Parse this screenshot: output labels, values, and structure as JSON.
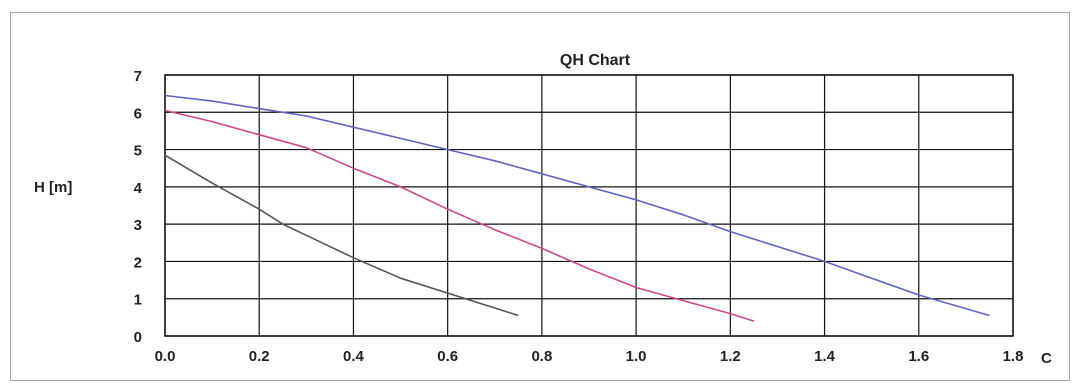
{
  "chart_data": {
    "type": "line",
    "title": "QH Chart",
    "ylabel": "H [m]",
    "xlabel": "C",
    "xlim": [
      0,
      1.8
    ],
    "ylim": [
      0,
      7
    ],
    "x_ticks": [
      "0.0",
      "0.2",
      "0.4",
      "0.6",
      "0.8",
      "1.0",
      "1.2",
      "1.4",
      "1.6",
      "1.8"
    ],
    "y_ticks": [
      "0",
      "1",
      "2",
      "3",
      "4",
      "5",
      "6",
      "7"
    ],
    "grid": true,
    "series": [
      {
        "color": "#5b66c4",
        "x": [
          0.0,
          0.1,
          0.2,
          0.3,
          0.4,
          0.5,
          0.6,
          0.7,
          0.8,
          0.9,
          1.0,
          1.1,
          1.2,
          1.3,
          1.4,
          1.5,
          1.6,
          1.75
        ],
        "y": [
          6.45,
          6.3,
          6.1,
          5.9,
          5.6,
          5.3,
          5.0,
          4.7,
          4.35,
          4.0,
          3.65,
          3.25,
          2.8,
          2.4,
          2.0,
          1.55,
          1.1,
          0.55
        ]
      },
      {
        "color": "#d0478f",
        "x": [
          0.0,
          0.1,
          0.2,
          0.3,
          0.4,
          0.5,
          0.6,
          0.7,
          0.8,
          0.9,
          1.0,
          1.1,
          1.2,
          1.25
        ],
        "y": [
          6.05,
          5.75,
          5.4,
          5.05,
          4.5,
          4.0,
          3.4,
          2.85,
          2.35,
          1.8,
          1.3,
          0.95,
          0.6,
          0.4
        ]
      },
      {
        "color": "#555555",
        "x": [
          0.0,
          0.1,
          0.2,
          0.25,
          0.3,
          0.4,
          0.5,
          0.6,
          0.7,
          0.75
        ],
        "y": [
          4.85,
          4.1,
          3.4,
          3.0,
          2.7,
          2.1,
          1.55,
          1.15,
          0.75,
          0.55
        ]
      }
    ]
  }
}
